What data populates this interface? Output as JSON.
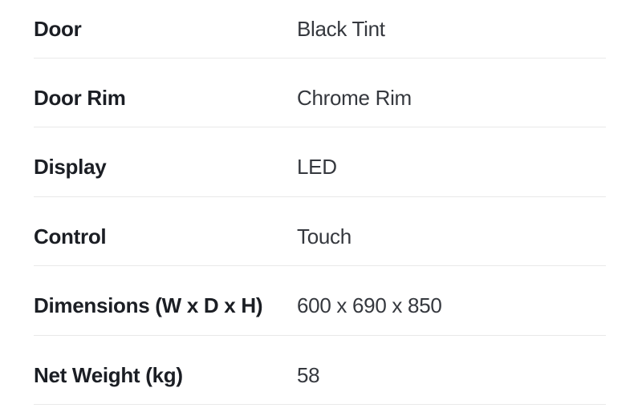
{
  "colors": {
    "background": "#ffffff",
    "label_text": "#1b1e24",
    "value_text": "#35383e",
    "divider": "#e9e9e9"
  },
  "spec_table": {
    "rows": [
      {
        "label": "Door",
        "value": "Black Tint"
      },
      {
        "label": "Door Rim",
        "value": "Chrome Rim"
      },
      {
        "label": "Display",
        "value": "LED"
      },
      {
        "label": "Control",
        "value": "Touch"
      },
      {
        "label": "Dimensions (W x D x H)",
        "value": "600 x 690 x 850"
      },
      {
        "label": "Net Weight (kg)",
        "value": "58"
      }
    ]
  }
}
